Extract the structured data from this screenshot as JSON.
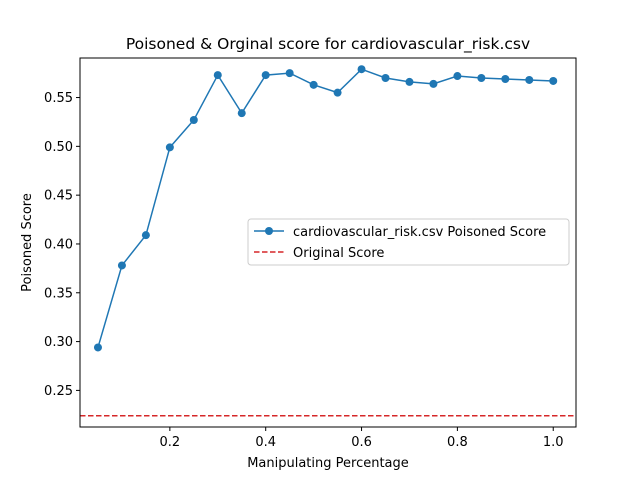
{
  "chart_data": {
    "type": "line",
    "title": "Poisoned & Orginal score for cardiovascular_risk.csv",
    "xlabel": "Manipulating Percentage",
    "ylabel": "Poisoned Score",
    "xlim": [
      0.0125,
      1.0475
    ],
    "ylim": [
      0.2125,
      0.5905
    ],
    "xticks": [
      0.2,
      0.4,
      0.6,
      0.8,
      1.0
    ],
    "xtick_labels": [
      "0.2",
      "0.4",
      "0.6",
      "0.8",
      "1.0"
    ],
    "yticks": [
      0.25,
      0.3,
      0.35,
      0.4,
      0.45,
      0.5,
      0.55
    ],
    "ytick_labels": [
      "0.25",
      "0.30",
      "0.35",
      "0.40",
      "0.45",
      "0.50",
      "0.55"
    ],
    "grid": false,
    "legend_position": "center-right",
    "series": [
      {
        "name": "cardiovascular_risk.csv Poisoned Score",
        "style": "solid",
        "marker": "circle",
        "color": "#1f77b4",
        "x": [
          0.05,
          0.1,
          0.15,
          0.2,
          0.25,
          0.3,
          0.35,
          0.4,
          0.45,
          0.5,
          0.55,
          0.6,
          0.65,
          0.7,
          0.75,
          0.8,
          0.85,
          0.9,
          0.95,
          1.0
        ],
        "y": [
          0.294,
          0.378,
          0.409,
          0.499,
          0.527,
          0.573,
          0.534,
          0.573,
          0.575,
          0.563,
          0.555,
          0.579,
          0.57,
          0.566,
          0.564,
          0.572,
          0.57,
          0.569,
          0.568,
          0.567
        ]
      },
      {
        "name": "Original Score",
        "style": "dashed",
        "marker": "none",
        "color": "#d62728",
        "y_constant": 0.224
      }
    ]
  }
}
